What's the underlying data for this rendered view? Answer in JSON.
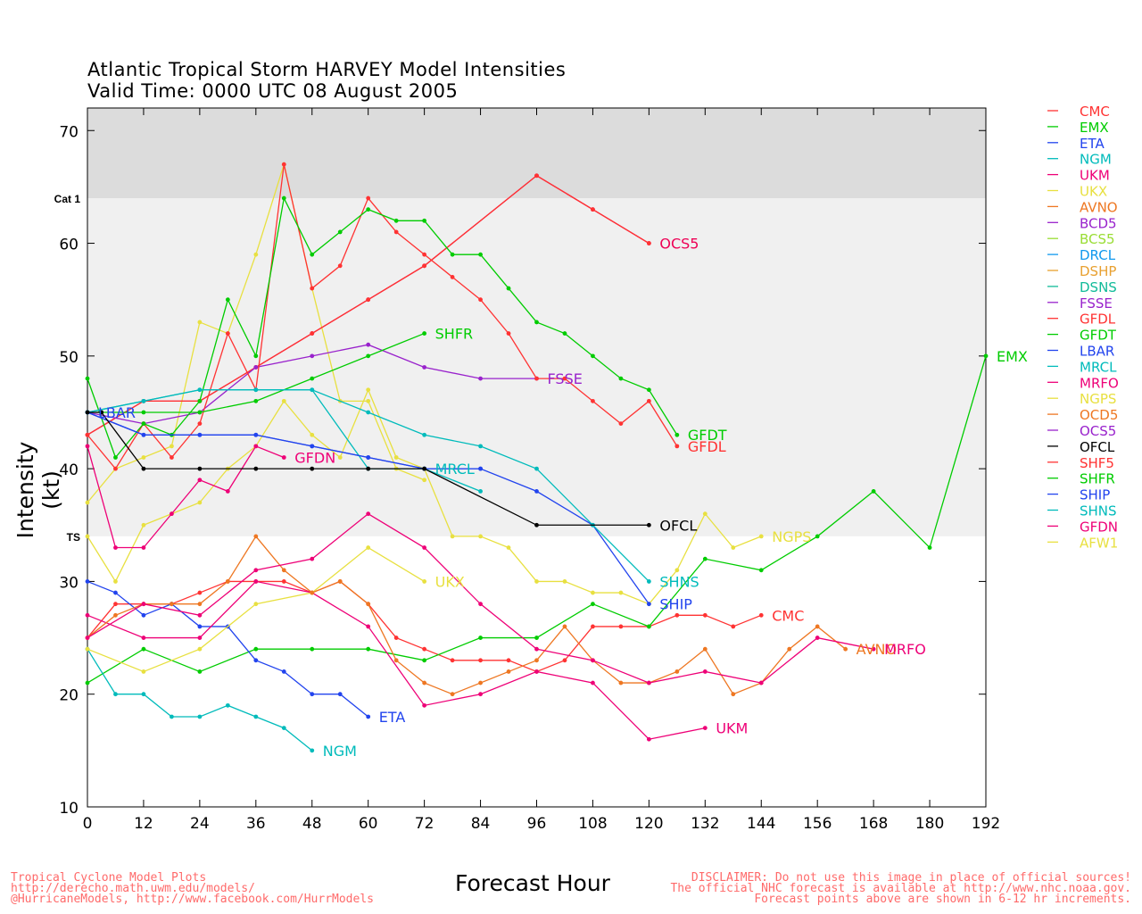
{
  "header": {
    "title_line1": "Atlantic Tropical Storm HARVEY Model Intensities",
    "title_line2": "Valid Time: 0000 UTC 08 August 2005"
  },
  "footer": {
    "left_line1": "Tropical Cyclone Model Plots",
    "left_line2": "http://derecho.math.uwm.edu/models/",
    "left_line3": "@HurricaneModels, http://www.facebook.com/HurrModels",
    "right_line1": "DISCLAIMER: Do not use this image in place of official sources!",
    "right_line2": "The official NHC forecast is available at http://www.nhc.noaa.gov.",
    "right_line3": "Forecast points above are shown in 6-12 hr increments."
  },
  "chart_data": {
    "type": "line",
    "xlabel": "Forecast Hour",
    "ylabel": "Intensity (kt)",
    "xlim": [
      0,
      192
    ],
    "ylim": [
      10,
      72
    ],
    "xticks": [
      0,
      12,
      24,
      36,
      48,
      60,
      72,
      84,
      96,
      108,
      120,
      132,
      144,
      156,
      168,
      180,
      192
    ],
    "yticks": [
      10,
      20,
      30,
      40,
      50,
      60,
      70
    ],
    "bands": [
      {
        "label": "Cat 1",
        "from": 64,
        "to": 72,
        "color": "#dcdcdc"
      },
      {
        "label": "TS",
        "from": 34,
        "to": 64,
        "color": "#f0f0f0"
      }
    ],
    "series": [
      {
        "name": "CMC",
        "color": "#ff3333",
        "x": [
          0,
          6,
          12,
          18,
          24,
          30,
          36,
          42,
          48,
          54,
          60,
          66,
          72,
          78,
          84,
          90,
          96,
          102,
          108,
          114,
          120,
          126,
          132,
          138,
          144
        ],
        "y": [
          25,
          28,
          28,
          28,
          29,
          30,
          30,
          30,
          29,
          30,
          28,
          25,
          24,
          23,
          23,
          23,
          22,
          23,
          26,
          26,
          26,
          27,
          27,
          26,
          27
        ]
      },
      {
        "name": "EMX",
        "color": "#00cc00",
        "x": [
          0,
          12,
          24,
          36,
          48,
          60,
          72,
          84,
          96,
          108,
          120,
          132,
          144,
          156,
          168,
          180,
          192
        ],
        "y": [
          21,
          24,
          22,
          24,
          24,
          24,
          23,
          25,
          25,
          28,
          26,
          32,
          31,
          34,
          38,
          33,
          50
        ]
      },
      {
        "name": "ETA",
        "color": "#2244ee",
        "x": [
          0,
          6,
          12,
          18,
          24,
          30,
          36,
          42,
          48,
          54,
          60
        ],
        "y": [
          30,
          29,
          27,
          28,
          26,
          26,
          23,
          22,
          20,
          20,
          18
        ]
      },
      {
        "name": "NGM",
        "color": "#00bbbb",
        "x": [
          0,
          6,
          12,
          18,
          24,
          30,
          36,
          42,
          48
        ],
        "y": [
          24,
          20,
          20,
          18,
          18,
          19,
          18,
          17,
          15
        ]
      },
      {
        "name": "UKM",
        "color": "#ee0077",
        "x": [
          0,
          12,
          24,
          36,
          48,
          60,
          72,
          84,
          96,
          108,
          120,
          132
        ],
        "y": [
          27,
          25,
          25,
          30,
          29,
          26,
          19,
          20,
          22,
          21,
          16,
          17
        ]
      },
      {
        "name": "UKX",
        "color": "#e8e040",
        "x": [
          0,
          12,
          24,
          36,
          48,
          60,
          72
        ],
        "y": [
          24,
          22,
          24,
          28,
          29,
          33,
          30
        ]
      },
      {
        "name": "AVNO",
        "color": "#ee7722",
        "x": [
          0,
          6,
          12,
          18,
          24,
          30,
          36,
          42,
          48,
          54,
          60,
          66,
          72,
          78,
          84,
          90,
          96,
          102,
          108,
          114,
          120,
          126,
          132,
          138,
          144,
          150,
          156,
          162
        ],
        "y": [
          25,
          27,
          28,
          28,
          28,
          30,
          34,
          31,
          29,
          30,
          28,
          23,
          21,
          20,
          21,
          22,
          23,
          26,
          23,
          21,
          21,
          22,
          24,
          20,
          21,
          24,
          26,
          24
        ]
      },
      {
        "name": "NGPS",
        "color": "#e8e040",
        "x": [
          0,
          6,
          12,
          18,
          24,
          30,
          36,
          42,
          48,
          54,
          60,
          66,
          72,
          78,
          84,
          90,
          96,
          102,
          108,
          114,
          120,
          126,
          132,
          138,
          144
        ],
        "y": [
          34,
          30,
          35,
          36,
          37,
          40,
          42,
          46,
          43,
          41,
          47,
          41,
          40,
          34,
          34,
          33,
          30,
          30,
          29,
          29,
          28,
          31,
          36,
          33,
          34
        ]
      },
      {
        "name": "AFW1",
        "color": "#e8e040",
        "x": [
          0,
          6,
          12,
          18,
          24,
          30,
          36,
          42,
          48,
          54,
          60,
          66,
          72
        ],
        "y": [
          37,
          40,
          41,
          42,
          53,
          52,
          59,
          67,
          56,
          46,
          46,
          40,
          39
        ]
      },
      {
        "name": "MRFO",
        "color": "#ee0077",
        "x": [
          0,
          12,
          24,
          36,
          48,
          60,
          72,
          84,
          96,
          108,
          120,
          132,
          144,
          156,
          168
        ],
        "y": [
          25,
          28,
          27,
          31,
          32,
          36,
          33,
          28,
          24,
          23,
          21,
          22,
          21,
          25,
          24
        ]
      },
      {
        "name": "OCS5",
        "color": "#ee0055",
        "x": [
          0,
          12,
          24,
          36,
          48,
          60,
          72,
          96,
          108,
          120
        ],
        "y": [
          43,
          46,
          46,
          49,
          52,
          55,
          58,
          66,
          63,
          60
        ]
      },
      {
        "name": "OCD5",
        "color": "#ff3333",
        "x": [
          0,
          12,
          24,
          36,
          48,
          60,
          72,
          96,
          108,
          120
        ],
        "y": [
          43,
          46,
          46,
          49,
          52,
          55,
          58,
          66,
          63,
          60
        ]
      },
      {
        "name": "BCD5",
        "color": "#9922cc",
        "x": [
          0,
          12,
          24,
          36,
          48,
          60,
          72,
          84,
          96
        ],
        "y": [
          45,
          44,
          45,
          49,
          50,
          51,
          49,
          48,
          48
        ]
      },
      {
        "name": "GFDL",
        "color": "#ff3333",
        "x": [
          0,
          6,
          12,
          18,
          24,
          30,
          36,
          42,
          48,
          54,
          60,
          66,
          72,
          78,
          84,
          90,
          96,
          102,
          108,
          114,
          120,
          126
        ],
        "y": [
          43,
          40,
          44,
          41,
          44,
          52,
          47,
          67,
          56,
          58,
          64,
          61,
          59,
          57,
          55,
          52,
          48,
          48,
          46,
          44,
          46,
          42
        ]
      },
      {
        "name": "GFDT",
        "color": "#00cc00",
        "x": [
          0,
          6,
          12,
          18,
          24,
          30,
          36,
          42,
          48,
          54,
          60,
          66,
          72,
          78,
          84,
          90,
          96,
          102,
          108,
          114,
          120,
          126
        ],
        "y": [
          48,
          41,
          44,
          43,
          46,
          55,
          50,
          64,
          59,
          61,
          63,
          62,
          62,
          59,
          59,
          56,
          53,
          52,
          50,
          48,
          47,
          43
        ]
      },
      {
        "name": "SHFR",
        "color": "#00cc00",
        "x": [
          0,
          12,
          24,
          36,
          48,
          60,
          72
        ],
        "y": [
          45,
          45,
          45,
          46,
          48,
          50,
          52
        ]
      },
      {
        "name": "GFDN",
        "color": "#ee0077",
        "x": [
          0,
          6,
          12,
          18,
          24,
          30,
          36,
          42
        ],
        "y": [
          42,
          33,
          33,
          36,
          39,
          38,
          42,
          41
        ]
      },
      {
        "name": "LBAR",
        "color": "#2244ee",
        "x": [
          0,
          12,
          24,
          36,
          48,
          60,
          72,
          84
        ],
        "y": [
          45,
          43,
          43,
          43,
          42,
          41,
          40,
          40
        ]
      },
      {
        "name": "MRCL",
        "color": "#00bbbb",
        "x": [
          0,
          12,
          24,
          36,
          48,
          60,
          72,
          84
        ],
        "y": [
          45,
          46,
          47,
          47,
          47,
          40,
          40,
          38
        ]
      },
      {
        "name": "SHIP",
        "color": "#2244ee",
        "x": [
          0,
          12,
          24,
          36,
          48,
          60,
          72,
          84,
          96,
          108,
          120
        ],
        "y": [
          45,
          43,
          43,
          43,
          42,
          41,
          40,
          40,
          38,
          35,
          28
        ]
      },
      {
        "name": "SHNS",
        "color": "#00bbbb",
        "x": [
          0,
          12,
          24,
          36,
          48,
          60,
          72,
          84,
          96,
          108,
          120
        ],
        "y": [
          45,
          46,
          47,
          47,
          47,
          45,
          43,
          42,
          40,
          35,
          30
        ]
      },
      {
        "name": "OFCL",
        "color": "#000000",
        "x": [
          0,
          3,
          12,
          24,
          36,
          48,
          60,
          72,
          96,
          120
        ],
        "y": [
          45,
          45,
          40,
          40,
          40,
          40,
          40,
          40,
          35,
          35
        ]
      }
    ],
    "end_labels": [
      {
        "text": "OCS5",
        "color": "#ee0055",
        "x": 120,
        "y": 60
      },
      {
        "text": "SHFR",
        "color": "#00cc00",
        "x": 72,
        "y": 52
      },
      {
        "text": "FSSE",
        "color": "#9922cc",
        "x": 96,
        "y": 48
      },
      {
        "text": "EMX",
        "color": "#00cc00",
        "x": 192,
        "y": 50
      },
      {
        "text": "LBAR",
        "color": "#2244ee",
        "x": 0,
        "y": 45
      },
      {
        "text": "GFDT",
        "color": "#00cc00",
        "x": 126,
        "y": 43
      },
      {
        "text": "GFDL",
        "color": "#ff3333",
        "x": 126,
        "y": 42
      },
      {
        "text": "GFDN",
        "color": "#ee0077",
        "x": 42,
        "y": 41
      },
      {
        "text": "MRCL",
        "color": "#00bbbb",
        "x": 72,
        "y": 40
      },
      {
        "text": "OFCL",
        "color": "#000000",
        "x": 120,
        "y": 35
      },
      {
        "text": "NGPS",
        "color": "#e8e040",
        "x": 144,
        "y": 34
      },
      {
        "text": "SHNS",
        "color": "#00bbbb",
        "x": 120,
        "y": 30
      },
      {
        "text": "UKX",
        "color": "#e8e040",
        "x": 72,
        "y": 30
      },
      {
        "text": "SHIP",
        "color": "#2244ee",
        "x": 120,
        "y": 28
      },
      {
        "text": "CMC",
        "color": "#ff3333",
        "x": 144,
        "y": 27
      },
      {
        "text": "AVNO",
        "color": "#ee7722",
        "x": 162,
        "y": 24
      },
      {
        "text": "MRFO",
        "color": "#ee0077",
        "x": 168,
        "y": 24
      },
      {
        "text": "ETA",
        "color": "#2244ee",
        "x": 60,
        "y": 18
      },
      {
        "text": "UKM",
        "color": "#ee0077",
        "x": 132,
        "y": 17
      },
      {
        "text": "NGM",
        "color": "#00bbbb",
        "x": 48,
        "y": 15
      }
    ],
    "legend": {
      "placement": "right",
      "entries": [
        {
          "name": "CMC",
          "color": "#ff3333"
        },
        {
          "name": "EMX",
          "color": "#00cc00"
        },
        {
          "name": "ETA",
          "color": "#2244ee"
        },
        {
          "name": "NGM",
          "color": "#00bbbb"
        },
        {
          "name": "UKM",
          "color": "#ee0077"
        },
        {
          "name": "UKX",
          "color": "#e8e040"
        },
        {
          "name": "AVNO",
          "color": "#ee7722"
        },
        {
          "name": "BCD5",
          "color": "#9922cc"
        },
        {
          "name": "BCS5",
          "color": "#99dd33"
        },
        {
          "name": "DRCL",
          "color": "#1199ee"
        },
        {
          "name": "DSHP",
          "color": "#e8a030"
        },
        {
          "name": "DSNS",
          "color": "#11bb99"
        },
        {
          "name": "FSSE",
          "color": "#9922cc"
        },
        {
          "name": "GFDL",
          "color": "#ff3333"
        },
        {
          "name": "GFDT",
          "color": "#00cc00"
        },
        {
          "name": "LBAR",
          "color": "#2244ee"
        },
        {
          "name": "MRCL",
          "color": "#00bbbb"
        },
        {
          "name": "MRFO",
          "color": "#ee0077"
        },
        {
          "name": "NGPS",
          "color": "#e8e040"
        },
        {
          "name": "OCD5",
          "color": "#ee7722"
        },
        {
          "name": "OCS5",
          "color": "#9922cc"
        },
        {
          "name": "OFCL",
          "color": "#000000"
        },
        {
          "name": "SHF5",
          "color": "#ff3333"
        },
        {
          "name": "SHFR",
          "color": "#00cc00"
        },
        {
          "name": "SHIP",
          "color": "#2244ee"
        },
        {
          "name": "SHNS",
          "color": "#00bbbb"
        },
        {
          "name": "GFDN",
          "color": "#ee0077"
        },
        {
          "name": "AFW1",
          "color": "#e8e040"
        }
      ]
    }
  }
}
